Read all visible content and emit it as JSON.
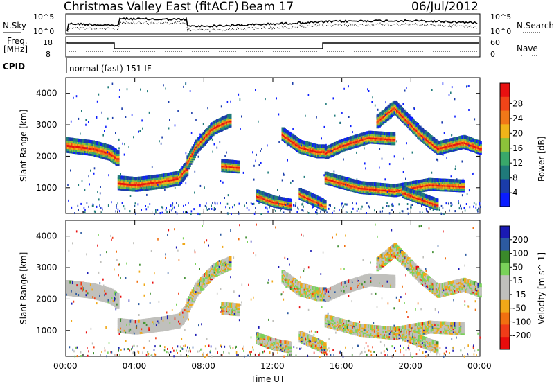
{
  "header": {
    "title": "Christmas Valley East (fitACF)",
    "beam": "Beam 17",
    "date": "06/Jul/2012"
  },
  "noise_panel": {
    "left_label": "N.Sky",
    "right_label": "N.Search",
    "left_ticks": [
      "10^5",
      "10^0"
    ],
    "right_ticks": [
      "10^5",
      "10^0"
    ]
  },
  "freq_panel": {
    "left_label_1": "Freq.",
    "left_label_2": "[MHz]",
    "left_ticks": [
      "18",
      "8"
    ],
    "right_label": "Nave",
    "right_ticks": [
      "60",
      "0"
    ]
  },
  "cpid": {
    "label": "CPID",
    "value": "normal (fast) 151 IF"
  },
  "colors": {
    "power": [
      "#0a1cff",
      "#1a3caa",
      "#1f7a7a",
      "#39a86a",
      "#8cc23a",
      "#f0b419",
      "#f07818",
      "#f04418",
      "#e81010"
    ],
    "velocity": [
      "#1a1ab4",
      "#2c5aa0",
      "#3a8a2a",
      "#7ad25a",
      "#c0c0bc",
      "#c0c0bc",
      "#f0a818",
      "#f07010",
      "#f03c18",
      "#e80c0c"
    ]
  },
  "chart_data": [
    {
      "type": "heatmap",
      "name": "power",
      "ylabel": "Slant Range [km]",
      "x_ticks": [
        "00:00",
        "04:00",
        "08:00",
        "12:00",
        "16:00",
        "20:00",
        "00:00"
      ],
      "y_ticks": [
        "4000",
        "3000",
        "2000",
        "1000"
      ],
      "ylim": [
        180,
        4500
      ],
      "xlim_hours": [
        0,
        24
      ],
      "colorbar": {
        "label": "Power [dB]",
        "ticks": [
          "28",
          "24",
          "20",
          "16",
          "12",
          "8",
          "4"
        ]
      },
      "bands": [
        {
          "t": [
            0,
            1.5,
            2.5,
            3.0
          ],
          "r": [
            2350,
            2250,
            2100,
            1900
          ],
          "width": 260
        },
        {
          "t": [
            3.0,
            4.0,
            5.5,
            6.5,
            7.0
          ],
          "r": [
            1150,
            1100,
            1200,
            1300,
            1650
          ],
          "width": 240
        },
        {
          "t": [
            7.0,
            7.5,
            8.5,
            9.5
          ],
          "r": [
            1800,
            2300,
            2900,
            3150
          ],
          "width": 220
        },
        {
          "t": [
            12.5,
            13.5,
            14.5,
            15.0
          ],
          "r": [
            2700,
            2300,
            2150,
            2150
          ],
          "width": 220
        },
        {
          "t": [
            15.0,
            16.0,
            17.5,
            19.0
          ],
          "r": [
            2100,
            2350,
            2600,
            2550
          ],
          "width": 200
        },
        {
          "t": [
            18.0,
            19.0,
            20.5,
            21.5,
            23.0,
            24.0
          ],
          "r": [
            3100,
            3550,
            2700,
            2250,
            2450,
            2250
          ],
          "width": 220
        },
        {
          "t": [
            15.0,
            17.0,
            19.0,
            21.0,
            23.0
          ],
          "r": [
            1300,
            1000,
            900,
            1100,
            1050
          ],
          "width": 200
        },
        {
          "t": [
            11.0,
            12.0,
            13.0
          ],
          "r": [
            750,
            550,
            450
          ],
          "width": 180
        },
        {
          "t": [
            13.5,
            14.5,
            15.0
          ],
          "r": [
            800,
            550,
            400
          ],
          "width": 180
        },
        {
          "t": [
            19.5,
            20.5,
            21.5
          ],
          "r": [
            850,
            650,
            450
          ],
          "width": 180
        },
        {
          "t": [
            9.0,
            10.0
          ],
          "r": [
            1700,
            1650
          ],
          "width": 200
        }
      ]
    },
    {
      "type": "heatmap",
      "name": "velocity",
      "ylabel": "Slant Range [km]",
      "xlabel": "Time UT",
      "x_ticks": [
        "00:00",
        "04:00",
        "08:00",
        "12:00",
        "16:00",
        "20:00",
        "00:00"
      ],
      "y_ticks": [
        "4000",
        "3000",
        "2000",
        "1000"
      ],
      "ylim": [
        180,
        4500
      ],
      "xlim_hours": [
        0,
        24
      ],
      "colorbar": {
        "label": "Velocity [m s^-1]",
        "ticks": [
          "200",
          "100",
          "50",
          "15",
          "-15",
          "-50",
          "-100",
          "-200"
        ]
      }
    }
  ]
}
